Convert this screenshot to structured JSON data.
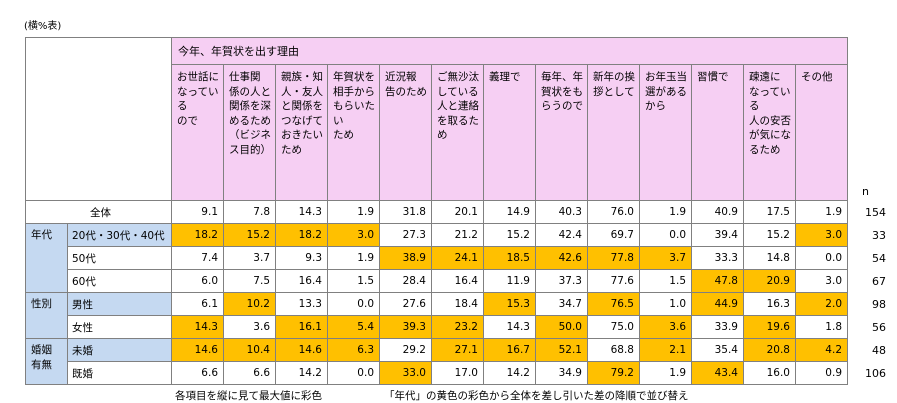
{
  "unit_label": "(横%表)",
  "header_title": "今年、年賀状を出す理由",
  "columns": [
    [
      "お世話に",
      "なっている",
      "ので"
    ],
    [
      "仕事関",
      "係の人と",
      "関係を深",
      "めるため",
      "（ビジネ",
      "ス目的）"
    ],
    [
      "親族・知",
      "人・友人",
      "と関係を",
      "つなげて",
      "おきたい",
      "ため"
    ],
    [
      "年賀状を",
      "相手から",
      "もらいたい",
      "ため"
    ],
    [
      "近況報",
      "告のため"
    ],
    [
      "ご無沙汰",
      "している",
      "人と連絡",
      "を取るた",
      "め"
    ],
    [
      "義理で"
    ],
    [
      "毎年、年",
      "賀状をも",
      "らうので"
    ],
    [
      "新年の挨",
      "拶として"
    ],
    [
      "お年玉当",
      "選がある",
      "から"
    ],
    [
      "習慣で"
    ],
    [
      "疎遠に",
      "なっている",
      "人の安否",
      "が気にな",
      "るため"
    ],
    [
      "その他"
    ]
  ],
  "n_header": "n",
  "groups": [
    {
      "label": [
        "全体"
      ],
      "rows": [
        0
      ]
    },
    {
      "label": [
        "年代"
      ],
      "rows": [
        1,
        2,
        3
      ]
    },
    {
      "label": [
        "性別"
      ],
      "rows": [
        4,
        5
      ]
    },
    {
      "label": [
        "婚姻",
        "有無"
      ],
      "rows": [
        6,
        7
      ]
    }
  ],
  "rows": [
    {
      "label": "全体",
      "values": [
        "9.1",
        "7.8",
        "14.3",
        "1.9",
        "31.8",
        "20.1",
        "14.9",
        "40.3",
        "76.0",
        "1.9",
        "40.9",
        "17.5",
        "1.9"
      ],
      "highlight": [],
      "n": "154"
    },
    {
      "label": "20代・30代・40代",
      "values": [
        "18.2",
        "15.2",
        "18.2",
        "3.0",
        "27.3",
        "21.2",
        "15.2",
        "42.4",
        "69.7",
        "0.0",
        "39.4",
        "15.2",
        "3.0"
      ],
      "highlight": [
        0,
        1,
        2,
        3,
        12
      ],
      "n": "33"
    },
    {
      "label": "50代",
      "values": [
        "7.4",
        "3.7",
        "9.3",
        "1.9",
        "38.9",
        "24.1",
        "18.5",
        "42.6",
        "77.8",
        "3.7",
        "33.3",
        "14.8",
        "0.0"
      ],
      "highlight": [
        4,
        5,
        6,
        7,
        8,
        9
      ],
      "n": "54"
    },
    {
      "label": "60代",
      "values": [
        "6.0",
        "7.5",
        "16.4",
        "1.5",
        "28.4",
        "16.4",
        "11.9",
        "37.3",
        "77.6",
        "1.5",
        "47.8",
        "20.9",
        "3.0"
      ],
      "highlight": [
        10,
        11
      ],
      "n": "67"
    },
    {
      "label": "男性",
      "values": [
        "6.1",
        "10.2",
        "13.3",
        "0.0",
        "27.6",
        "18.4",
        "15.3",
        "34.7",
        "76.5",
        "1.0",
        "44.9",
        "16.3",
        "2.0"
      ],
      "highlight": [
        1,
        6,
        8,
        10,
        12
      ],
      "n": "98"
    },
    {
      "label": "女性",
      "values": [
        "14.3",
        "3.6",
        "16.1",
        "5.4",
        "39.3",
        "23.2",
        "14.3",
        "50.0",
        "75.0",
        "3.6",
        "33.9",
        "19.6",
        "1.8"
      ],
      "highlight": [
        0,
        2,
        3,
        4,
        5,
        7,
        9,
        11
      ],
      "n": "56"
    },
    {
      "label": "未婚",
      "values": [
        "14.6",
        "10.4",
        "14.6",
        "6.3",
        "29.2",
        "27.1",
        "16.7",
        "52.1",
        "68.8",
        "2.1",
        "35.4",
        "20.8",
        "4.2"
      ],
      "highlight": [
        0,
        1,
        2,
        3,
        5,
        6,
        7,
        9,
        11,
        12
      ],
      "n": "48"
    },
    {
      "label": "既婚",
      "values": [
        "6.6",
        "6.6",
        "14.2",
        "0.0",
        "33.0",
        "17.0",
        "14.2",
        "34.9",
        "79.2",
        "1.9",
        "43.4",
        "16.0",
        "0.9"
      ],
      "highlight": [
        4,
        8,
        10
      ],
      "n": "106"
    }
  ],
  "note_left": "各項目を縦に見て最大値に彩色",
  "note_right": "「年代」の黄色の彩色から全体を差し引いた差の降順で並び替え",
  "colors": {
    "header_pink": "#f6cff3",
    "row_blue": "#c5d9f1",
    "highlight": "#ffc000"
  }
}
